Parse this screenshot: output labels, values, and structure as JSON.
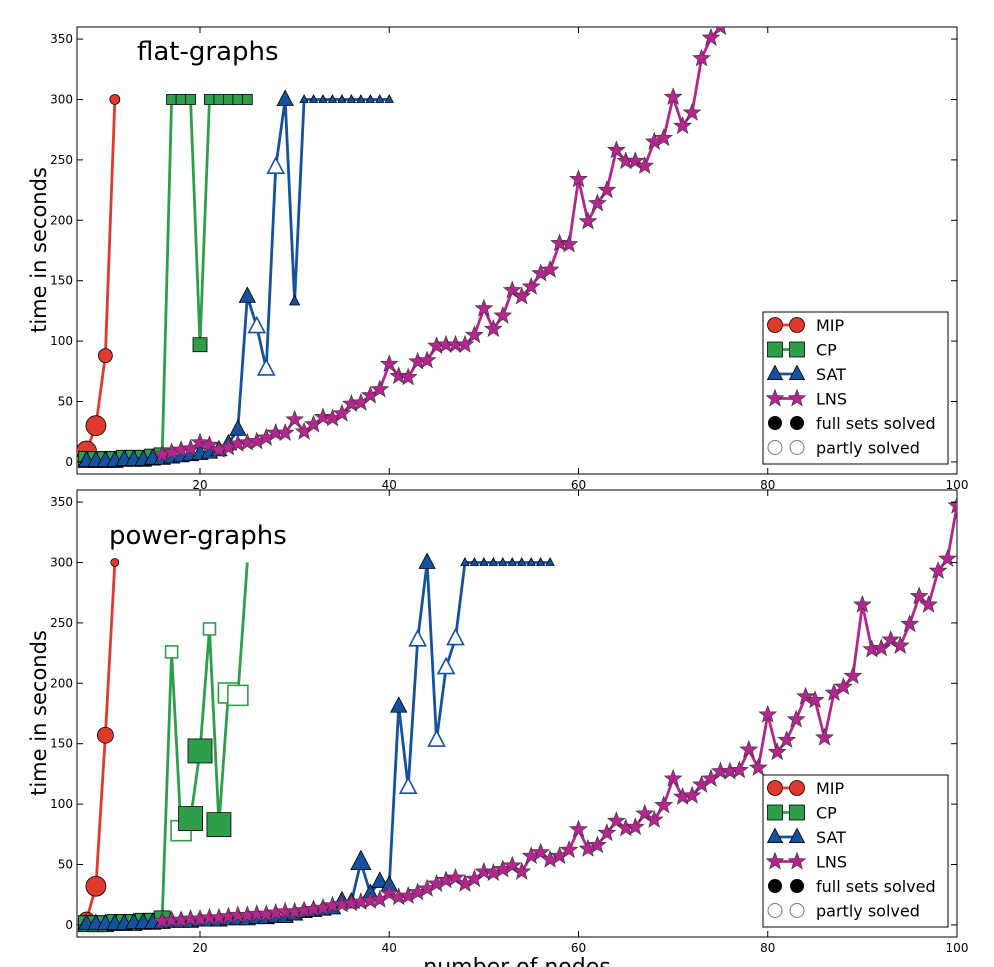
{
  "figure": {
    "xlabel": "number of nodes",
    "ylabel": "time in seconds",
    "xlim": [
      7,
      100
    ],
    "ylim": [
      -10,
      360
    ],
    "xticks": [
      20,
      40,
      60,
      80,
      100
    ],
    "yticks": [
      0,
      50,
      100,
      150,
      200,
      250,
      300,
      350
    ],
    "xtick_labels": [
      "20",
      "40",
      "60",
      "80",
      "100"
    ],
    "ytick_labels": [
      "0",
      "50",
      "100",
      "150",
      "200",
      "250",
      "300",
      "350"
    ],
    "colors": {
      "MIP": "#e03a2f",
      "CP": "#2e9e4a",
      "SAT": "#1452a0",
      "LNS": "#b4258f"
    },
    "legend_entries": [
      {
        "key": "MIP",
        "label": "MIP"
      },
      {
        "key": "CP",
        "label": "CP"
      },
      {
        "key": "SAT",
        "label": "SAT"
      },
      {
        "key": "LNS",
        "label": "LNS"
      },
      {
        "key": "full",
        "label": "full sets solved"
      },
      {
        "key": "partial",
        "label": "partly solved"
      }
    ],
    "legend_position": "lower-right"
  },
  "chart_data": [
    {
      "type": "line",
      "title": "flat-graphs",
      "xlabel": "",
      "ylabel": "time in seconds",
      "xlim": [
        7,
        100
      ],
      "ylim": [
        -10,
        360
      ],
      "grid": false,
      "legend": "lower-right",
      "series": [
        {
          "name": "MIP",
          "marker": "circle",
          "x": [
            8,
            9,
            10,
            11
          ],
          "y": [
            9,
            30,
            88,
            300
          ],
          "size": [
            10,
            10,
            7,
            5
          ],
          "fill": [
            true,
            true,
            true,
            true
          ]
        },
        {
          "name": "CP",
          "marker": "square",
          "x": [
            8,
            9,
            10,
            11,
            12,
            13,
            14,
            15,
            16,
            17,
            18,
            19,
            20,
            21,
            22,
            23,
            24,
            25
          ],
          "y": [
            2,
            2,
            2,
            2,
            3,
            3,
            3,
            4,
            5,
            300,
            300,
            300,
            97,
            300,
            300,
            300,
            300,
            300
          ],
          "size": [
            8,
            8,
            8,
            8,
            8,
            8,
            8,
            8,
            8,
            5,
            5,
            5,
            7,
            5,
            5,
            5,
            5,
            5
          ],
          "fill": [
            true,
            true,
            true,
            true,
            true,
            true,
            true,
            true,
            true,
            true,
            true,
            true,
            true,
            true,
            true,
            true,
            true,
            true
          ]
        },
        {
          "name": "SAT",
          "marker": "triangle",
          "x": [
            8,
            9,
            10,
            11,
            12,
            13,
            14,
            15,
            16,
            17,
            18,
            19,
            20,
            21,
            22,
            23,
            24,
            25,
            26,
            27,
            28,
            29,
            30,
            31,
            32,
            33,
            34,
            35,
            36,
            37,
            38,
            39,
            40
          ],
          "y": [
            1,
            1,
            1,
            1,
            2,
            2,
            2,
            3,
            3,
            4,
            5,
            6,
            7,
            8,
            10,
            15,
            27,
            137,
            112,
            77,
            244,
            300,
            133,
            300,
            300,
            300,
            300,
            300,
            300,
            300,
            300,
            300,
            300
          ],
          "size": [
            8,
            8,
            8,
            8,
            8,
            8,
            8,
            8,
            8,
            8,
            8,
            8,
            8,
            8,
            8,
            8,
            8,
            8,
            8,
            8,
            8,
            8,
            5,
            4,
            4,
            4,
            4,
            4,
            4,
            4,
            4,
            4,
            4
          ],
          "fill": [
            true,
            true,
            true,
            true,
            true,
            true,
            true,
            true,
            true,
            true,
            true,
            true,
            true,
            true,
            true,
            true,
            true,
            true,
            false,
            false,
            false,
            true,
            true,
            true,
            true,
            true,
            true,
            true,
            true,
            true,
            true,
            true,
            true
          ]
        },
        {
          "name": "LNS",
          "marker": "star",
          "x": [
            16,
            17,
            18,
            19,
            20,
            21,
            22,
            23,
            24,
            25,
            26,
            27,
            28,
            29,
            30,
            31,
            32,
            33,
            34,
            35,
            36,
            37,
            38,
            39,
            40,
            41,
            42,
            43,
            44,
            45,
            46,
            47,
            48,
            49,
            50,
            51,
            52,
            53,
            54,
            55,
            56,
            57,
            58,
            59,
            60,
            61,
            62,
            63,
            64,
            65,
            66,
            67,
            68,
            69,
            70,
            71,
            72,
            73,
            74,
            75
          ],
          "y": [
            6,
            8,
            10,
            11,
            16,
            14,
            10,
            12,
            15,
            16,
            17,
            20,
            24,
            24,
            35,
            25,
            31,
            37,
            36,
            40,
            48,
            49,
            55,
            60,
            81,
            71,
            70,
            83,
            84,
            96,
            97,
            97,
            97,
            105,
            127,
            110,
            121,
            142,
            137,
            145,
            156,
            159,
            181,
            180,
            234,
            199,
            214,
            225,
            258,
            249,
            249,
            245,
            265,
            268,
            302,
            278,
            289,
            334,
            351,
            360
          ]
        }
      ]
    },
    {
      "type": "line",
      "title": "power-graphs",
      "xlabel": "number of nodes",
      "ylabel": "time in seconds",
      "xlim": [
        7,
        100
      ],
      "ylim": [
        -10,
        360
      ],
      "grid": false,
      "legend": "lower-right",
      "series": [
        {
          "name": "MIP",
          "marker": "circle",
          "x": [
            8,
            9,
            10,
            11
          ],
          "y": [
            4,
            32,
            157,
            300
          ],
          "size": [
            8,
            10,
            8,
            4
          ],
          "fill": [
            true,
            true,
            true,
            true
          ]
        },
        {
          "name": "CP",
          "marker": "square",
          "x": [
            8,
            9,
            10,
            11,
            12,
            13,
            14,
            15,
            16,
            17,
            18,
            19,
            20,
            21,
            22,
            23,
            24,
            25
          ],
          "y": [
            1,
            1,
            1,
            2,
            2,
            2,
            3,
            3,
            5,
            226,
            78,
            88,
            144,
            245,
            83,
            192,
            190,
            300
          ],
          "size": [
            8,
            8,
            8,
            8,
            8,
            8,
            8,
            8,
            8,
            6,
            10,
            12,
            12,
            6,
            12,
            10,
            10,
            0
          ],
          "fill": [
            true,
            true,
            true,
            true,
            true,
            true,
            true,
            true,
            true,
            false,
            false,
            true,
            true,
            false,
            true,
            false,
            false,
            true
          ]
        },
        {
          "name": "SAT",
          "marker": "triangle",
          "x": [
            8,
            9,
            10,
            11,
            12,
            13,
            14,
            15,
            16,
            17,
            18,
            19,
            20,
            21,
            22,
            23,
            24,
            25,
            26,
            27,
            28,
            29,
            30,
            31,
            32,
            33,
            34,
            35,
            36,
            37,
            38,
            39,
            40,
            41,
            42,
            43,
            44,
            45,
            46,
            47,
            48,
            49,
            50,
            51,
            52,
            53,
            54,
            55,
            56,
            57
          ],
          "y": [
            1,
            1,
            1,
            1,
            1,
            2,
            2,
            2,
            2,
            3,
            3,
            3,
            4,
            4,
            4,
            5,
            5,
            5,
            6,
            6,
            7,
            7,
            9,
            11,
            12,
            13,
            14,
            20,
            19,
            52,
            26,
            36,
            33,
            181,
            114,
            236,
            300,
            153,
            213,
            237,
            300,
            300,
            300,
            300,
            300,
            300,
            300,
            300,
            300,
            300
          ],
          "size": [
            8,
            8,
            8,
            8,
            8,
            8,
            8,
            8,
            8,
            8,
            8,
            8,
            8,
            8,
            8,
            8,
            8,
            8,
            8,
            8,
            8,
            8,
            8,
            8,
            8,
            8,
            8,
            8,
            8,
            10,
            8,
            8,
            8,
            8,
            8,
            8,
            8,
            8,
            8,
            8,
            4,
            4,
            4,
            4,
            4,
            4,
            4,
            4,
            4,
            4
          ],
          "fill": [
            true,
            true,
            true,
            true,
            true,
            true,
            true,
            true,
            true,
            true,
            true,
            true,
            true,
            true,
            true,
            true,
            true,
            true,
            true,
            true,
            true,
            true,
            true,
            true,
            true,
            true,
            true,
            true,
            true,
            true,
            true,
            true,
            true,
            true,
            false,
            false,
            true,
            false,
            false,
            false,
            true,
            true,
            true,
            true,
            true,
            true,
            true,
            true,
            true,
            true
          ]
        },
        {
          "name": "LNS",
          "marker": "star",
          "x": [
            16,
            17,
            18,
            19,
            20,
            21,
            22,
            23,
            24,
            25,
            26,
            27,
            28,
            29,
            30,
            31,
            32,
            33,
            34,
            35,
            36,
            37,
            38,
            39,
            40,
            41,
            42,
            43,
            44,
            45,
            46,
            47,
            48,
            49,
            50,
            51,
            52,
            53,
            54,
            55,
            56,
            57,
            58,
            59,
            60,
            61,
            62,
            63,
            64,
            65,
            66,
            67,
            68,
            69,
            70,
            71,
            72,
            73,
            74,
            75,
            76,
            77,
            78,
            79,
            80,
            81,
            82,
            83,
            84,
            85,
            86,
            87,
            88,
            89,
            90,
            91,
            92,
            93,
            94,
            95,
            96,
            97,
            98,
            99,
            100
          ],
          "y": [
            3,
            4,
            4,
            5,
            5,
            6,
            6,
            7,
            8,
            8,
            9,
            9,
            10,
            11,
            11,
            12,
            13,
            14,
            16,
            17,
            18,
            19,
            20,
            21,
            26,
            23,
            24,
            27,
            30,
            34,
            37,
            39,
            34,
            38,
            44,
            43,
            46,
            49,
            44,
            57,
            60,
            54,
            57,
            62,
            79,
            63,
            66,
            76,
            86,
            80,
            81,
            92,
            87,
            99,
            121,
            106,
            107,
            116,
            121,
            127,
            127,
            128,
            145,
            130,
            174,
            143,
            153,
            170,
            189,
            186,
            155,
            192,
            197,
            206,
            265,
            228,
            229,
            236,
            231,
            249,
            272,
            265,
            293,
            303,
            347
          ]
        }
      ]
    }
  ]
}
